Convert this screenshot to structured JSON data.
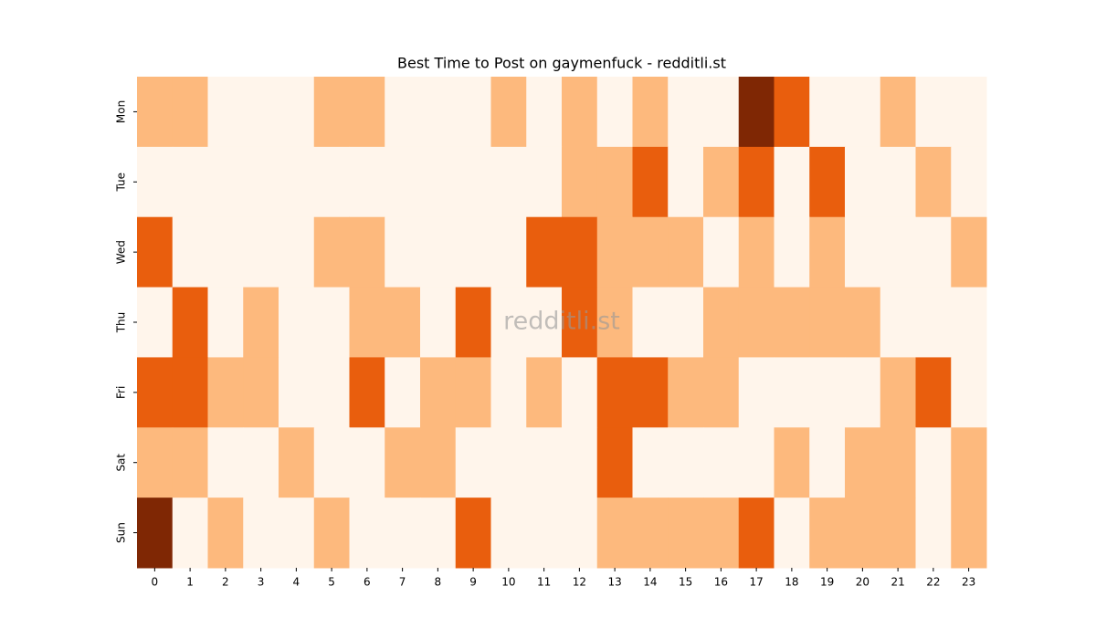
{
  "chart_data": {
    "type": "heatmap",
    "title": "Best Time to Post on gaymenfuck - redditli.st",
    "watermark": "redditli.st",
    "x": [
      0,
      1,
      2,
      3,
      4,
      5,
      6,
      7,
      8,
      9,
      10,
      11,
      12,
      13,
      14,
      15,
      16,
      17,
      18,
      19,
      20,
      21,
      22,
      23
    ],
    "y": [
      "Mon",
      "Tue",
      "Wed",
      "Thu",
      "Fri",
      "Sat",
      "Sun"
    ],
    "colors": [
      "#fff5eb",
      "#fdb97d",
      "#e95e0d",
      "#7f2704"
    ],
    "values": [
      [
        1,
        1,
        0,
        0,
        0,
        1,
        1,
        0,
        0,
        0,
        1,
        0,
        1,
        0,
        1,
        0,
        0,
        3,
        2,
        0,
        0,
        1,
        0,
        0
      ],
      [
        0,
        0,
        0,
        0,
        0,
        0,
        0,
        0,
        0,
        0,
        0,
        0,
        1,
        1,
        2,
        0,
        1,
        2,
        0,
        2,
        0,
        0,
        1,
        0
      ],
      [
        2,
        0,
        0,
        0,
        0,
        1,
        1,
        0,
        0,
        0,
        0,
        2,
        2,
        1,
        1,
        1,
        0,
        1,
        0,
        1,
        0,
        0,
        0,
        1
      ],
      [
        0,
        2,
        0,
        1,
        0,
        0,
        1,
        1,
        0,
        2,
        0,
        0,
        2,
        1,
        0,
        0,
        1,
        1,
        1,
        1,
        1,
        0,
        0,
        0
      ],
      [
        2,
        2,
        1,
        1,
        0,
        0,
        2,
        0,
        1,
        1,
        0,
        1,
        0,
        2,
        2,
        1,
        1,
        0,
        0,
        0,
        0,
        1,
        2,
        0
      ],
      [
        1,
        1,
        0,
        0,
        1,
        0,
        0,
        1,
        1,
        0,
        0,
        0,
        0,
        2,
        0,
        0,
        0,
        0,
        1,
        0,
        1,
        1,
        0,
        1
      ],
      [
        3,
        0,
        1,
        0,
        0,
        1,
        0,
        0,
        0,
        2,
        0,
        0,
        0,
        1,
        1,
        1,
        1,
        2,
        0,
        1,
        1,
        1,
        0,
        1
      ]
    ]
  }
}
